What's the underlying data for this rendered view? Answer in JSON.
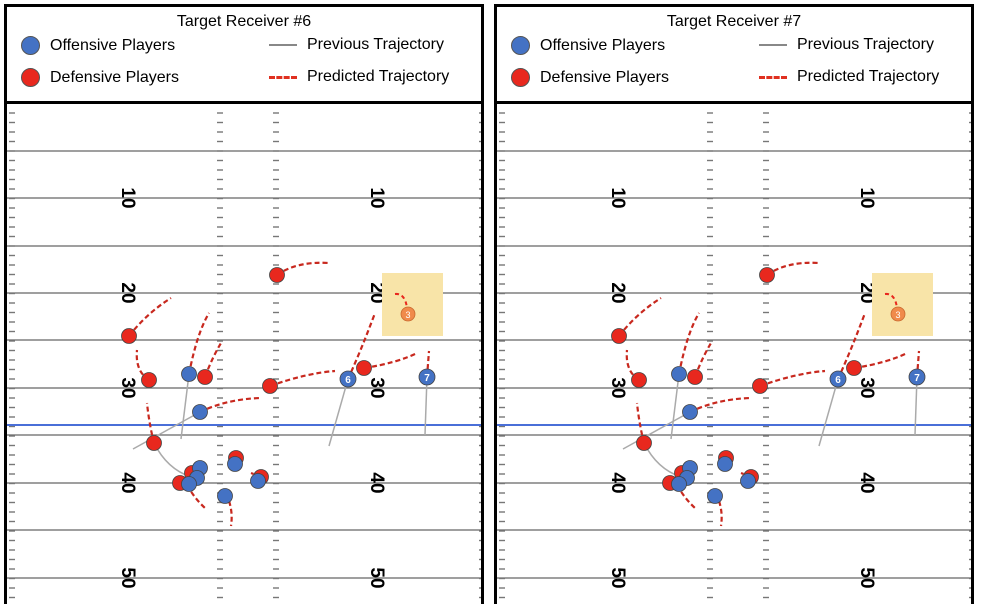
{
  "panels": [
    {
      "title": "Target Receiver #6"
    },
    {
      "title": "Target Receiver #7"
    }
  ],
  "legend": {
    "offense": "Offensive Players",
    "defense": "Defensive Players",
    "previous": "Previous Trajectory",
    "predicted": "Predicted Trajectory"
  },
  "yard_labels": [
    "10",
    "20",
    "30",
    "40",
    "50"
  ],
  "jersey_labels": {
    "target": "3",
    "receiver_a": "6",
    "receiver_b": "7"
  },
  "colors": {
    "offense": "#4472c4",
    "defense": "#e8281e",
    "target": "#f08a4b",
    "los": "#4a6fd8",
    "highlight": "#f8e4a8"
  }
}
